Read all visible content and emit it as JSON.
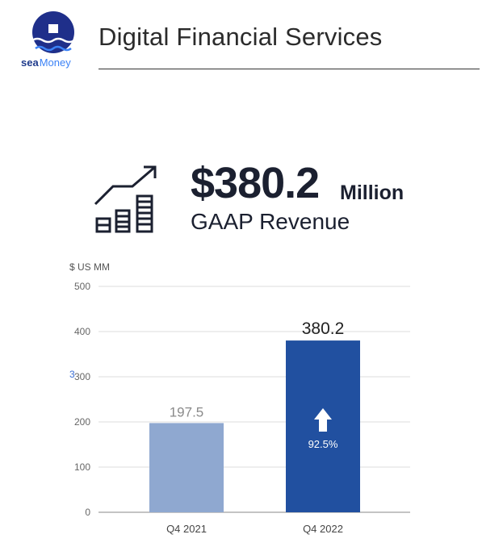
{
  "header": {
    "logo_word_sea": "sea",
    "logo_word_money": "Money",
    "title": "Digital Financial Services"
  },
  "kpi": {
    "value": "$380.2",
    "unit": "Million",
    "caption": "GAAP Revenue",
    "icon": "growth-bar-chart-icon"
  },
  "stray_mark": "3",
  "chart_data": {
    "type": "bar",
    "title": "",
    "ylabel": "$ US MM",
    "xlabel": "",
    "ylim": [
      0,
      500
    ],
    "yticks": [
      0,
      100,
      200,
      300,
      400,
      500
    ],
    "ytick_labels": [
      "0",
      "100",
      "200",
      "300",
      "400",
      "500"
    ],
    "grid": true,
    "categories": [
      "Q4 2021",
      "Q4 2022"
    ],
    "values": [
      197.5,
      380.2
    ],
    "value_labels": [
      "197.5",
      "380.2"
    ],
    "colors": [
      "#8fa8d0",
      "#2150a0"
    ],
    "annotation": {
      "category": "Q4 2022",
      "text": "92.5%",
      "icon": "up-arrow-icon"
    }
  }
}
